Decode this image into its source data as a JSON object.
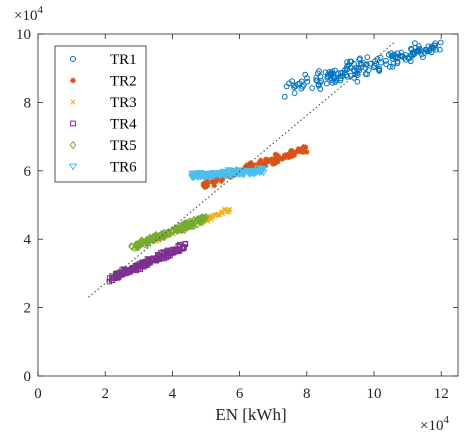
{
  "chart_data": {
    "type": "scatter",
    "title": "",
    "xlabel": "EN [kWh]",
    "ylabel": "",
    "x_multiplier": "×10",
    "x_multiplier_exp": "4",
    "y_multiplier": "×10",
    "y_multiplier_exp": "4",
    "xlim": [
      0,
      125000
    ],
    "ylim": [
      0,
      100000
    ],
    "xticks": [
      0,
      20000,
      40000,
      60000,
      80000,
      100000,
      120000
    ],
    "xtick_labels": [
      "0",
      "2",
      "4",
      "6",
      "8",
      "10",
      "12"
    ],
    "yticks": [
      0,
      20000,
      40000,
      60000,
      80000,
      100000
    ],
    "ytick_labels": [
      "0",
      "2",
      "4",
      "6",
      "8",
      "10"
    ],
    "grid": false,
    "legend_position": "top-left",
    "series": [
      {
        "name": "TR1",
        "marker": "circle",
        "color": "#0072BD",
        "clusters": [
          {
            "x0": 74000,
            "y0": 84000,
            "x1": 120000,
            "y1": 96500,
            "spread": 2600,
            "n": 170
          }
        ]
      },
      {
        "name": "TR2",
        "marker": "star",
        "color": "#D95319",
        "clusters": [
          {
            "x0": 49000,
            "y0": 56000,
            "x1": 80000,
            "y1": 66500,
            "spread": 1100,
            "n": 160
          }
        ]
      },
      {
        "name": "TR3",
        "marker": "x",
        "color": "#EDB120",
        "clusters": [
          {
            "x0": 35000,
            "y0": 40000,
            "x1": 57000,
            "y1": 48500,
            "spread": 700,
            "n": 90
          }
        ]
      },
      {
        "name": "TR4",
        "marker": "square",
        "color": "#7E2F8E",
        "clusters": [
          {
            "x0": 21500,
            "y0": 28500,
            "x1": 43500,
            "y1": 38000,
            "spread": 1000,
            "n": 190
          }
        ]
      },
      {
        "name": "TR5",
        "marker": "diamond",
        "color": "#77AC30",
        "clusters": [
          {
            "x0": 28000,
            "y0": 37500,
            "x1": 50000,
            "y1": 46500,
            "spread": 900,
            "n": 170
          }
        ]
      },
      {
        "name": "TR6",
        "marker": "triangle",
        "color": "#4DBEEE",
        "clusters": [
          {
            "x0": 45500,
            "y0": 58500,
            "x1": 67000,
            "y1": 60000,
            "spread": 700,
            "n": 180
          }
        ]
      }
    ],
    "reference_line": {
      "style": "dotted",
      "color": "#555555",
      "x": [
        15000,
        106000
      ],
      "y": [
        23000,
        97500
      ]
    }
  }
}
